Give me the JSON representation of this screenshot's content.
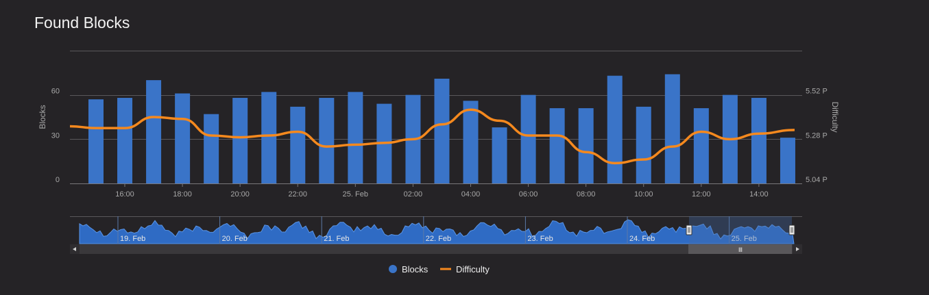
{
  "title": "Found Blocks",
  "colors": {
    "background": "#252326",
    "blocks": "#3a74c8",
    "difficulty": "#f5891e",
    "grid": "#5a585b",
    "text": "#a8a8a8"
  },
  "chart_data": {
    "type": "bar",
    "ylabel": "Blocks",
    "y2label": "Difficulty",
    "y_ticks": [
      "0",
      "30",
      "60"
    ],
    "y2_ticks": [
      "5.04 P",
      "5.28 P",
      "5.52 P"
    ],
    "ylim": [
      0,
      90
    ],
    "y2lim": [
      5.04,
      5.76
    ],
    "x_tick_labels": [
      "16:00",
      "18:00",
      "20:00",
      "22:00",
      "25. Feb",
      "02:00",
      "04:00",
      "06:00",
      "08:00",
      "10:00",
      "12:00",
      "14:00"
    ],
    "series": [
      {
        "name": "Blocks",
        "type": "bar",
        "values": [
          57,
          58,
          70,
          61,
          47,
          58,
          62,
          52,
          58,
          62,
          54,
          60,
          71,
          56,
          38,
          60,
          51,
          51,
          73,
          52,
          74,
          51,
          60,
          58,
          31
        ]
      },
      {
        "name": "Difficulty",
        "type": "line",
        "values": [
          5.35,
          5.34,
          5.34,
          5.4,
          5.39,
          5.3,
          5.29,
          5.3,
          5.32,
          5.24,
          5.25,
          5.26,
          5.28,
          5.36,
          5.44,
          5.38,
          5.3,
          5.3,
          5.21,
          5.15,
          5.17,
          5.24,
          5.32,
          5.28,
          5.31,
          5.33
        ]
      }
    ],
    "grid": true,
    "legend_position": "bottom-center"
  },
  "navigator": {
    "date_labels": [
      "19. Feb",
      "20. Feb",
      "21. Feb",
      "22. Feb",
      "23. Feb",
      "24. Feb",
      "25. Feb"
    ],
    "handle_glyph": "Ⅲ"
  },
  "legend": {
    "blocks": "Blocks",
    "difficulty": "Difficulty"
  }
}
